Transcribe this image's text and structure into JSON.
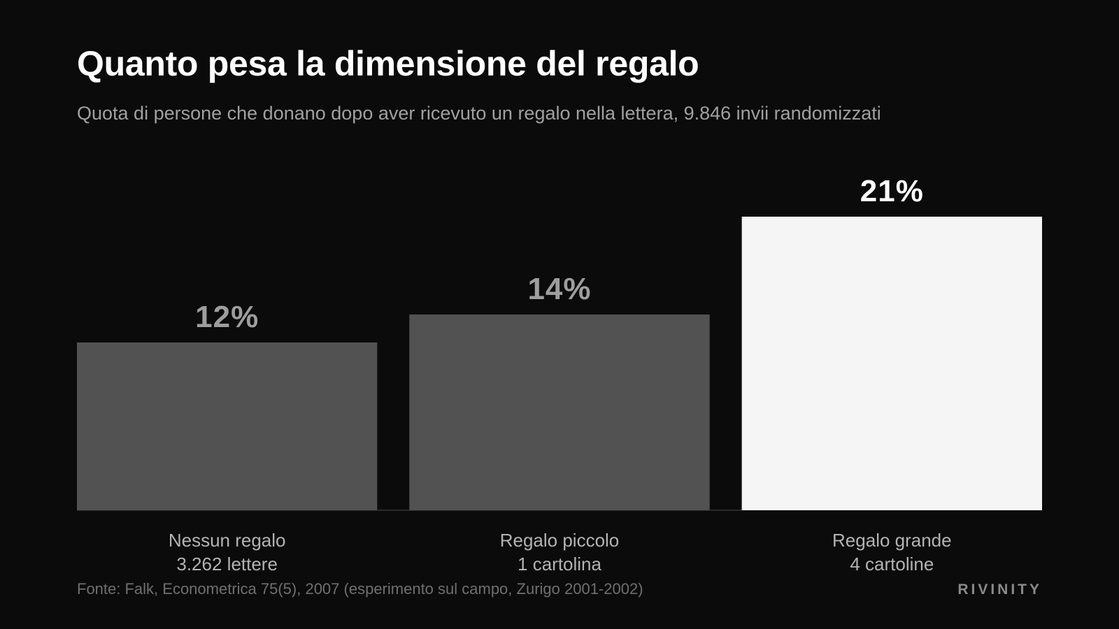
{
  "title": "Quanto pesa la dimensione del regalo",
  "subtitle": "Quota di persone che donano dopo aver ricevuto un regalo nella lettera, 9.846 invii randomizzati",
  "source": "Fonte: Falk, Econometrica 75(5), 2007 (esperimento sul campo, Zurigo 2001-2002)",
  "brand": "RIVINITY",
  "colors": {
    "background": "#0b0b0b",
    "bar_muted": "#525252",
    "bar_highlight": "#f5f5f5",
    "label_muted": "#9e9e9e",
    "label_highlight": "#ffffff",
    "baseline": "#2a2a2a"
  },
  "chart_data": {
    "type": "bar",
    "title": "Quanto pesa la dimensione del regalo",
    "subtitle": "Quota di persone che donano dopo aver ricevuto un regalo nella lettera, 9.846 invii randomizzati",
    "categories": [
      "Nessun regalo",
      "Regalo piccolo",
      "Regalo grande"
    ],
    "category_sublabels": [
      "3.262 lettere",
      "1 cartolina",
      "4 cartoline"
    ],
    "values": [
      12,
      14,
      21
    ],
    "value_labels": [
      "12%",
      "14%",
      "21%"
    ],
    "highlight_index": 2,
    "unit": "%",
    "ylim": [
      0,
      21
    ],
    "grid": false,
    "legend": "none",
    "xlabel": "",
    "ylabel": ""
  }
}
